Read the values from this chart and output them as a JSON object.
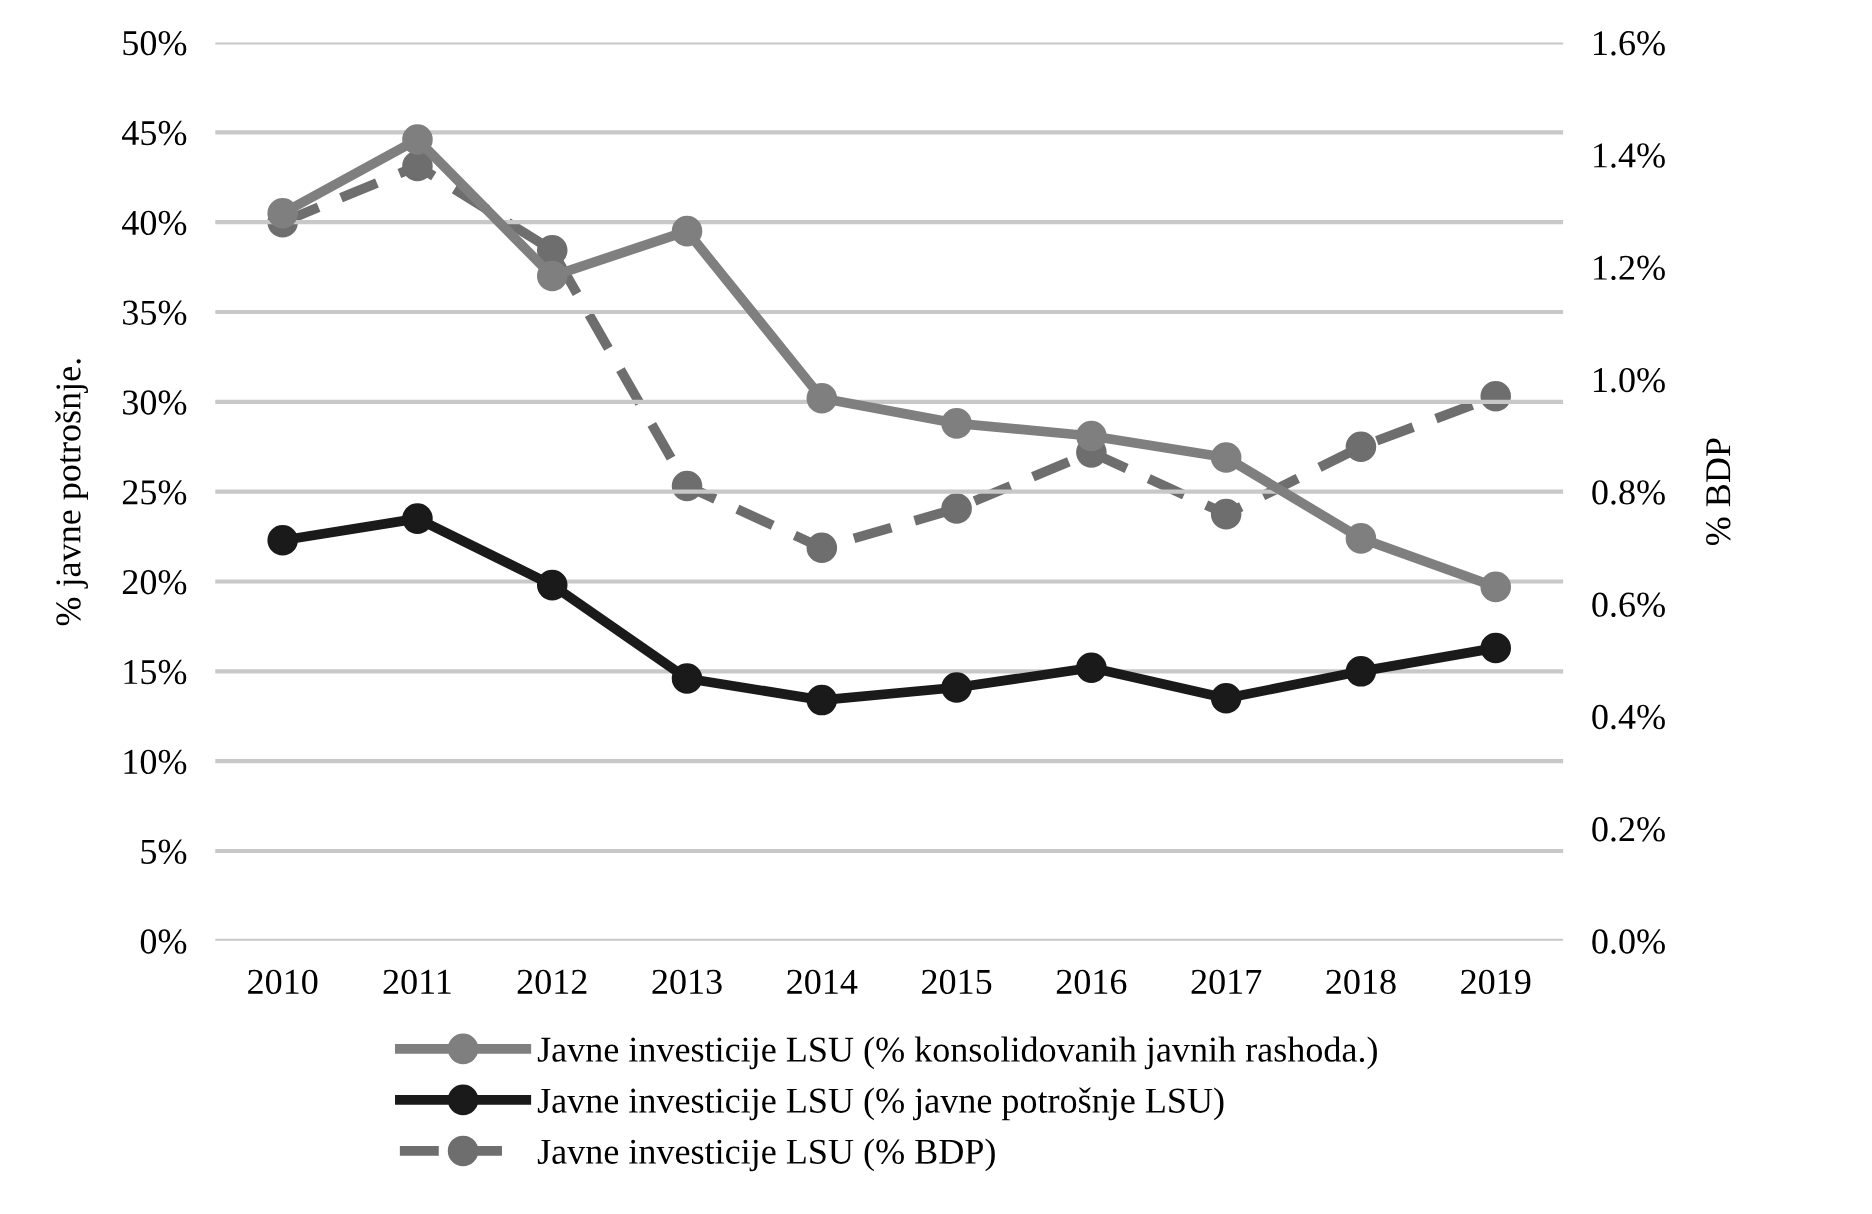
{
  "chart_data": {
    "type": "line",
    "categories": [
      "2010",
      "2011",
      "2012",
      "2013",
      "2014",
      "2015",
      "2016",
      "2017",
      "2018",
      "2019"
    ],
    "ylabel": "% javne potrošnje.",
    "y2label": "% BDP",
    "series": [
      {
        "name": "Javne investicije LSU (% konsolidovanih javnih rashoda.)",
        "color": "#7f7f7f",
        "line_style": "solid",
        "values": [
          40.5,
          44.6,
          37.0,
          39.5,
          30.2,
          28.8,
          28.1,
          26.9,
          22.4,
          19.7
        ]
      },
      {
        "name": "Javne investicije LSU (% javne potrošnje LSU)",
        "color": "#1a1a1a",
        "line_style": "solid",
        "values": [
          22.3,
          23.5,
          19.8,
          14.6,
          13.4,
          14.1,
          15.2,
          13.5,
          15.0,
          16.3
        ]
      },
      {
        "name": "Javne investicije LSU (% BDP)",
        "color": "#6e6e6e",
        "line_style": "dashed",
        "axis": "y2",
        "values": [
          1.28,
          1.38,
          1.23,
          0.81,
          0.7,
          0.77,
          0.87,
          0.76,
          0.88,
          0.97
        ]
      }
    ],
    "ylim": [
      0,
      50
    ],
    "yticks": [
      {
        "value": 0,
        "label": "0%"
      },
      {
        "value": 5,
        "label": "5%"
      },
      {
        "value": 10,
        "label": "10%"
      },
      {
        "value": 15,
        "label": "15%"
      },
      {
        "value": 20,
        "label": "20%"
      },
      {
        "value": 25,
        "label": "25%"
      },
      {
        "value": 30,
        "label": "30%"
      },
      {
        "value": 35,
        "label": "35%"
      },
      {
        "value": 40,
        "label": "40%"
      },
      {
        "value": 45,
        "label": "45%"
      },
      {
        "value": 50,
        "label": "50%"
      }
    ],
    "y2lim": [
      0,
      1.6
    ],
    "y2ticks": [
      {
        "value": 0,
        "label": "0.0%"
      },
      {
        "value": 0.2,
        "label": "0.2%"
      },
      {
        "value": 0.4,
        "label": "0.4%"
      },
      {
        "value": 0.6,
        "label": "0.6%"
      },
      {
        "value": 0.8,
        "label": "0.8%"
      },
      {
        "value": 1.0,
        "label": "1.0%"
      },
      {
        "value": 1.2,
        "label": "1.2%"
      },
      {
        "value": 1.4,
        "label": "1.4%"
      },
      {
        "value": 1.6,
        "label": "1.6%"
      }
    ],
    "grid": "y",
    "legend": "bottom",
    "marker": "circle"
  }
}
